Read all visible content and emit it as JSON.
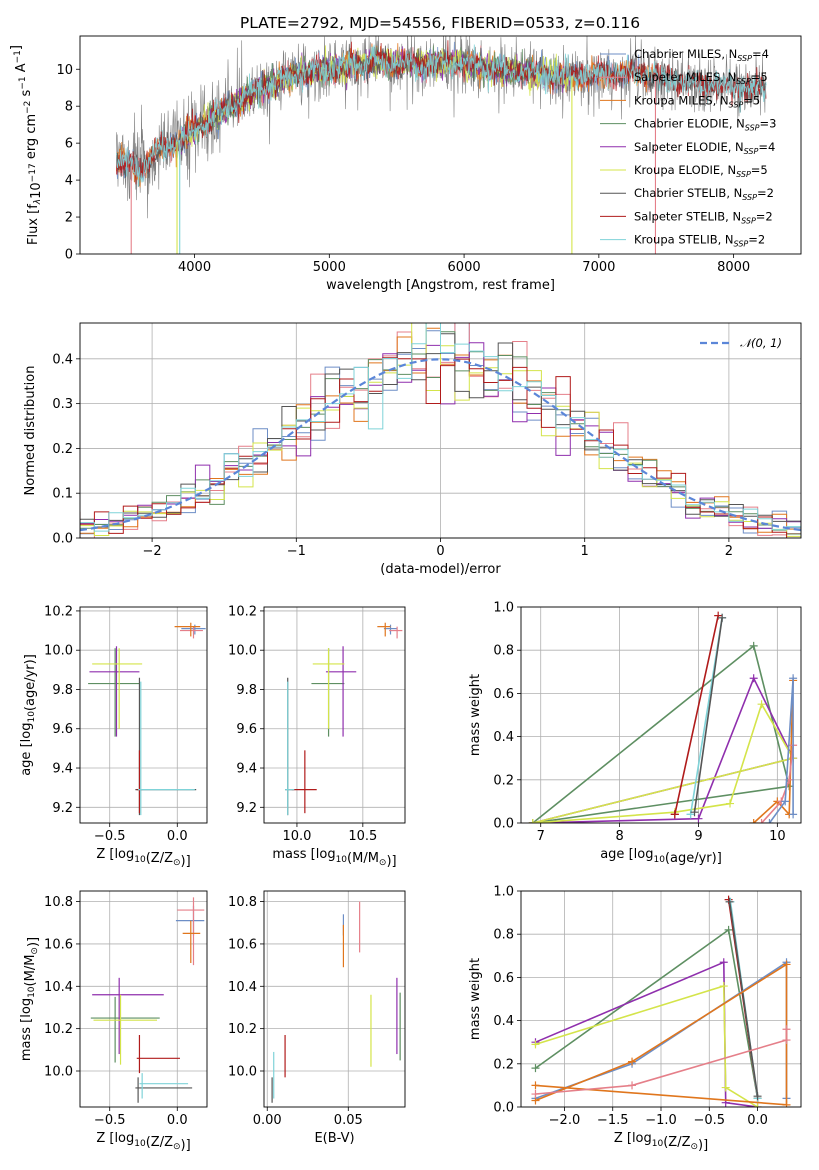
{
  "figure": {
    "title": "PLATE=2792, MJD=54556, FIBERID=0533, z=0.116"
  },
  "colors": {
    "chabrier_miles": "#6d8ec6",
    "salpeter_miles": "#e57f89",
    "kroupa_miles": "#e0761d",
    "chabrier_elodie": "#5e8f62",
    "salpeter_elodie": "#8f2fad",
    "kroupa_elodie": "#d4e44a",
    "chabrier_stelib": "#555555",
    "salpeter_stelib": "#b01b1b",
    "kroupa_stelib": "#7fd3d8",
    "data": "#7f7f7f",
    "gaussian": "#5b86d8"
  },
  "chart_data": [
    {
      "type": "line",
      "name": "spectrum",
      "xlabel": "wavelength [Angstrom, rest frame]",
      "ylabel": "Flux [f_λ10^-17 erg cm^-2 s^-1 A^-1]",
      "xlim": [
        3150,
        8500
      ],
      "ylim": [
        0,
        11.8
      ],
      "xticks": [
        4000,
        5000,
        6000,
        7000,
        8000
      ],
      "yticks": [
        0,
        2,
        4,
        6,
        8,
        10
      ],
      "data_range": [
        3420,
        8240
      ],
      "continuum_knots": {
        "x": [
          3420,
          3600,
          3700,
          3900,
          4000,
          4200,
          4300,
          4500,
          4700,
          4900,
          5100,
          5300,
          5500,
          5700,
          5900,
          6100,
          6300,
          6600,
          6800,
          7000,
          7300,
          7600,
          7900,
          8240
        ],
        "y": [
          5.0,
          4.6,
          5.4,
          6.2,
          6.7,
          7.7,
          8.1,
          9.0,
          9.6,
          9.9,
          10.1,
          10.4,
          10.3,
          10.2,
          10.4,
          10.2,
          9.9,
          9.7,
          9.6,
          9.7,
          9.8,
          9.3,
          9.1,
          9.0
        ]
      },
      "legend": [
        {
          "label": "Chabrier MILES, N",
          "sub": "SSP",
          "suffix": "=4",
          "color_key": "chabrier_miles"
        },
        {
          "label": "Salpeter MILES, N",
          "sub": "SSP",
          "suffix": "=5",
          "color_key": "salpeter_miles"
        },
        {
          "label": "Kroupa MILES, N",
          "sub": "SSP",
          "suffix": "=5",
          "color_key": "kroupa_miles"
        },
        {
          "label": "Chabrier ELODIE, N",
          "sub": "SSP",
          "suffix": "=3",
          "color_key": "chabrier_elodie"
        },
        {
          "label": "Salpeter ELODIE, N",
          "sub": "SSP",
          "suffix": "=4",
          "color_key": "salpeter_elodie"
        },
        {
          "label": "Kroupa ELODIE, N",
          "sub": "SSP",
          "suffix": "=5",
          "color_key": "kroupa_elodie"
        },
        {
          "label": "Chabrier STELIB, N",
          "sub": "SSP",
          "suffix": "=2",
          "color_key": "chabrier_stelib"
        },
        {
          "label": "Salpeter STELIB, N",
          "sub": "SSP",
          "suffix": "=2",
          "color_key": "salpeter_stelib"
        },
        {
          "label": "Kroupa STELIB, N",
          "sub": "SSP",
          "suffix": "=2",
          "color_key": "kroupa_stelib"
        }
      ],
      "legend_position": "top-right",
      "model_drops": [
        {
          "color_key": "salpeter_miles",
          "x": 3530
        },
        {
          "color_key": "kroupa_elodie",
          "x": 3870
        },
        {
          "color_key": "kroupa_stelib",
          "x": 3890
        },
        {
          "color_key": "kroupa_elodie",
          "x": 6800
        },
        {
          "color_key": "salpeter_miles",
          "x": 7420
        }
      ]
    },
    {
      "type": "bar",
      "name": "residual-histogram",
      "xlabel": "(data-model)/error",
      "ylabel": "Normed distribution",
      "xlim": [
        -2.5,
        2.5
      ],
      "ylim": [
        0,
        0.48
      ],
      "xticks": [
        -2,
        -1,
        0,
        1,
        2
      ],
      "yticks": [
        0.0,
        0.1,
        0.2,
        0.3,
        0.4
      ],
      "bin_width": 0.1,
      "gaussian_label": "𝒩(0, 1)",
      "legend_position": "top-right"
    },
    {
      "type": "scatter",
      "name": "age-vs-Z",
      "xlabel": "Z [log10(Z/Z⊙)]",
      "ylabel": "age [log10(age/yr)]",
      "xlim": [
        -0.72,
        0.22
      ],
      "ylim": [
        9.12,
        10.22
      ],
      "xticks": [
        -0.5,
        0.0
      ],
      "yticks": [
        9.2,
        9.4,
        9.6,
        9.8,
        10.0,
        10.2
      ],
      "points": [
        {
          "color_key": "chabrier_miles",
          "x": 0.13,
          "y": 10.11,
          "xerr": [
            0.1,
            0.08
          ],
          "yerr": [
            0.03,
            0.02
          ]
        },
        {
          "color_key": "salpeter_miles",
          "x": 0.12,
          "y": 10.1,
          "xerr": [
            0.1,
            0.07
          ],
          "yerr": [
            0.04,
            0.02
          ]
        },
        {
          "color_key": "kroupa_miles",
          "x": 0.1,
          "y": 10.12,
          "xerr": [
            0.12,
            0.07
          ],
          "yerr": [
            0.05,
            0.02
          ]
        },
        {
          "color_key": "chabrier_elodie",
          "x": -0.46,
          "y": 9.83,
          "xerr": [
            0.2,
            0.18
          ],
          "yerr": [
            0.27,
            0.18
          ]
        },
        {
          "color_key": "salpeter_elodie",
          "x": -0.45,
          "y": 9.89,
          "xerr": [
            0.2,
            0.17
          ],
          "yerr": [
            0.33,
            0.13
          ]
        },
        {
          "color_key": "kroupa_elodie",
          "x": -0.43,
          "y": 9.93,
          "xerr": [
            0.2,
            0.17
          ],
          "yerr": [
            0.33,
            0.08
          ]
        },
        {
          "color_key": "chabrier_stelib",
          "x": -0.28,
          "y": 9.29,
          "xerr": [
            0.03,
            0.42
          ],
          "yerr": [
            0.13,
            0.57
          ]
        },
        {
          "color_key": "salpeter_stelib",
          "x": -0.28,
          "y": 9.29,
          "xerr": [
            0.02,
            0.02
          ],
          "yerr": [
            0.12,
            0.2
          ]
        },
        {
          "color_key": "kroupa_stelib",
          "x": -0.27,
          "y": 9.29,
          "xerr": [
            0.02,
            0.4
          ],
          "yerr": [
            0.13,
            0.55
          ]
        }
      ]
    },
    {
      "type": "scatter",
      "name": "age-vs-mass",
      "xlabel": "mass [log10(M/M⊙)]",
      "ylabel": "",
      "xlim": [
        9.75,
        10.82
      ],
      "ylim": [
        9.12,
        10.22
      ],
      "xticks": [
        10.0,
        10.5
      ],
      "yticks": [
        9.2,
        9.4,
        9.6,
        9.8,
        10.0,
        10.2
      ],
      "points": [
        {
          "color_key": "chabrier_miles",
          "x": 10.71,
          "y": 10.11,
          "xerr": [
            0.05,
            0.05
          ],
          "yerr": [
            0.03,
            0.02
          ]
        },
        {
          "color_key": "salpeter_miles",
          "x": 10.76,
          "y": 10.1,
          "xerr": [
            0.06,
            0.04
          ],
          "yerr": [
            0.04,
            0.02
          ]
        },
        {
          "color_key": "kroupa_miles",
          "x": 10.67,
          "y": 10.12,
          "xerr": [
            0.06,
            0.04
          ],
          "yerr": [
            0.05,
            0.02
          ]
        },
        {
          "color_key": "chabrier_elodie",
          "x": 10.24,
          "y": 9.83,
          "xerr": [
            0.13,
            0.12
          ],
          "yerr": [
            0.27,
            0.18
          ]
        },
        {
          "color_key": "salpeter_elodie",
          "x": 10.35,
          "y": 9.89,
          "xerr": [
            0.13,
            0.1
          ],
          "yerr": [
            0.33,
            0.13
          ]
        },
        {
          "color_key": "kroupa_elodie",
          "x": 10.24,
          "y": 9.93,
          "xerr": [
            0.12,
            0.12
          ],
          "yerr": [
            0.33,
            0.08
          ]
        },
        {
          "color_key": "chabrier_stelib",
          "x": 9.93,
          "y": 9.29,
          "xerr": [
            0.02,
            0.05
          ],
          "yerr": [
            0.13,
            0.57
          ]
        },
        {
          "color_key": "salpeter_stelib",
          "x": 10.06,
          "y": 9.29,
          "xerr": [
            0.1,
            0.09
          ],
          "yerr": [
            0.12,
            0.2
          ]
        },
        {
          "color_key": "kroupa_stelib",
          "x": 9.93,
          "y": 9.29,
          "xerr": [
            0.02,
            0.05
          ],
          "yerr": [
            0.13,
            0.55
          ]
        }
      ]
    },
    {
      "type": "line",
      "name": "mass-weight-vs-age",
      "xlabel": "age [log10(age/yr)]",
      "ylabel": "mass weight",
      "xlim": [
        6.75,
        10.3
      ],
      "ylim": [
        0,
        1.0
      ],
      "xticks": [
        7,
        8,
        9,
        10
      ],
      "yticks": [
        0.0,
        0.2,
        0.4,
        0.6,
        0.8,
        1.0
      ],
      "series": [
        {
          "color_key": "chabrier_elodie",
          "x": [
            6.9,
            9.7,
            10.15,
            6.9
          ],
          "y": [
            0.0,
            0.82,
            0.17,
            0.0
          ]
        },
        {
          "color_key": "salpeter_elodie",
          "x": [
            6.9,
            9.0,
            9.7,
            10.2,
            6.9
          ],
          "y": [
            0.0,
            0.02,
            0.67,
            0.3,
            0.0
          ]
        },
        {
          "color_key": "kroupa_elodie",
          "x": [
            6.9,
            8.7,
            9.4,
            9.8,
            10.2,
            6.9
          ],
          "y": [
            0.0,
            0.05,
            0.09,
            0.55,
            0.3,
            0.0
          ]
        },
        {
          "color_key": "salpeter_stelib",
          "x": [
            8.7,
            9.25,
            8.7
          ],
          "y": [
            0.04,
            0.96,
            0.04
          ]
        },
        {
          "color_key": "kroupa_stelib",
          "x": [
            8.9,
            9.3,
            8.9
          ],
          "y": [
            0.04,
            0.95,
            0.04
          ]
        },
        {
          "color_key": "chabrier_stelib",
          "x": [
            8.95,
            9.3
          ],
          "y": [
            0.05,
            0.95
          ]
        },
        {
          "color_key": "kroupa_miles",
          "x": [
            9.7,
            10.0,
            10.15,
            10.2
          ],
          "y": [
            0.0,
            0.1,
            0.04,
            0.66
          ]
        },
        {
          "color_key": "salpeter_miles",
          "x": [
            9.8,
            10.05,
            10.15,
            10.2
          ],
          "y": [
            0.0,
            0.1,
            0.2,
            0.36
          ]
        },
        {
          "color_key": "chabrier_miles",
          "x": [
            9.9,
            10.1,
            10.2,
            10.2
          ],
          "y": [
            0.0,
            0.1,
            0.67,
            0.04
          ]
        }
      ]
    },
    {
      "type": "scatter",
      "name": "mass-vs-Z",
      "xlabel": "Z [log10(Z/Z⊙)]",
      "ylabel": "mass [log10(M/M⊙)]",
      "xlim": [
        -0.72,
        0.22
      ],
      "ylim": [
        9.83,
        10.85
      ],
      "xticks": [
        -0.5,
        0.0
      ],
      "yticks": [
        10.0,
        10.2,
        10.4,
        10.6,
        10.8
      ],
      "points": [
        {
          "color_key": "chabrier_miles",
          "x": 0.12,
          "y": 10.71,
          "xerr": [
            0.13,
            0.08
          ],
          "yerr": [
            0.07,
            0.07
          ]
        },
        {
          "color_key": "salpeter_miles",
          "x": 0.12,
          "y": 10.76,
          "xerr": [
            0.12,
            0.08
          ],
          "yerr": [
            0.26,
            0.06
          ]
        },
        {
          "color_key": "kroupa_miles",
          "x": 0.1,
          "y": 10.65,
          "xerr": [
            0.06,
            0.07
          ],
          "yerr": [
            0.14,
            0.06
          ]
        },
        {
          "color_key": "chabrier_elodie",
          "x": -0.46,
          "y": 10.25,
          "xerr": [
            0.18,
            0.33
          ],
          "yerr": [
            0.21,
            0.1
          ]
        },
        {
          "color_key": "salpeter_elodie",
          "x": -0.43,
          "y": 10.36,
          "xerr": [
            0.2,
            0.33
          ],
          "yerr": [
            0.28,
            0.08
          ]
        },
        {
          "color_key": "kroupa_elodie",
          "x": -0.42,
          "y": 10.24,
          "xerr": [
            0.2,
            0.27
          ],
          "yerr": [
            0.21,
            0.12
          ]
        },
        {
          "color_key": "chabrier_stelib",
          "x": -0.29,
          "y": 9.92,
          "xerr": [
            0.02,
            0.4
          ],
          "yerr": [
            0.07,
            0.05
          ]
        },
        {
          "color_key": "salpeter_stelib",
          "x": -0.28,
          "y": 10.06,
          "xerr": [
            0.02,
            0.3
          ],
          "yerr": [
            0.07,
            0.11
          ]
        },
        {
          "color_key": "kroupa_stelib",
          "x": -0.26,
          "y": 9.94,
          "xerr": [
            0.02,
            0.34
          ],
          "yerr": [
            0.07,
            0.05
          ]
        }
      ]
    },
    {
      "type": "scatter",
      "name": "mass-vs-EBV",
      "xlabel": "E(B-V)",
      "ylabel": "",
      "xlim": [
        -0.002,
        0.085
      ],
      "ylim": [
        9.83,
        10.85
      ],
      "xticks": [
        0.0,
        0.05
      ],
      "xtick_labels": [
        "0.00",
        "0.05"
      ],
      "yticks": [
        10.0,
        10.2,
        10.4,
        10.6,
        10.8
      ],
      "points": [
        {
          "color_key": "chabrier_miles",
          "x": 0.047,
          "y": 10.71,
          "yerr": [
            0.07,
            0.03
          ]
        },
        {
          "color_key": "salpeter_miles",
          "x": 0.057,
          "y": 10.75,
          "yerr": [
            0.19,
            0.05
          ]
        },
        {
          "color_key": "kroupa_miles",
          "x": 0.047,
          "y": 10.65,
          "yerr": [
            0.16,
            0.04
          ]
        },
        {
          "color_key": "chabrier_elodie",
          "x": 0.082,
          "y": 10.25,
          "yerr": [
            0.2,
            0.12
          ]
        },
        {
          "color_key": "salpeter_elodie",
          "x": 0.08,
          "y": 10.36,
          "yerr": [
            0.28,
            0.08
          ]
        },
        {
          "color_key": "kroupa_elodie",
          "x": 0.064,
          "y": 10.24,
          "yerr": [
            0.22,
            0.12
          ]
        },
        {
          "color_key": "chabrier_stelib",
          "x": 0.003,
          "y": 9.92,
          "yerr": [
            0.07,
            0.05
          ]
        },
        {
          "color_key": "salpeter_stelib",
          "x": 0.011,
          "y": 10.06,
          "yerr": [
            0.09,
            0.11
          ]
        },
        {
          "color_key": "kroupa_stelib",
          "x": 0.004,
          "y": 9.94,
          "yerr": [
            0.07,
            0.15
          ]
        }
      ]
    },
    {
      "type": "line",
      "name": "mass-weight-vs-Z",
      "xlabel": "Z [log10(Z/Z⊙)]",
      "ylabel": "mass weight",
      "xlim": [
        -2.45,
        0.45
      ],
      "ylim": [
        0,
        1.0
      ],
      "xticks": [
        -2.0,
        -1.5,
        -1.0,
        -0.5,
        0.0
      ],
      "yticks": [
        0.0,
        0.2,
        0.4,
        0.6,
        0.8,
        1.0
      ],
      "series": [
        {
          "color_key": "chabrier_elodie",
          "x": [
            -2.3,
            -0.3,
            0.0
          ],
          "y": [
            0.18,
            0.82,
            0.04
          ]
        },
        {
          "color_key": "salpeter_elodie",
          "x": [
            -2.3,
            -0.35,
            -0.33,
            0.0
          ],
          "y": [
            0.3,
            0.67,
            0.02,
            0.0
          ]
        },
        {
          "color_key": "kroupa_elodie",
          "x": [
            -2.3,
            -0.35,
            -0.33,
            0.0
          ],
          "y": [
            0.29,
            0.56,
            0.09,
            0.0
          ]
        },
        {
          "color_key": "salpeter_stelib",
          "x": [
            -0.3,
            0.0
          ],
          "y": [
            0.96,
            0.04
          ]
        },
        {
          "color_key": "kroupa_stelib",
          "x": [
            -0.28,
            0.0
          ],
          "y": [
            0.95,
            0.04
          ]
        },
        {
          "color_key": "chabrier_stelib",
          "x": [
            -0.29,
            0.0
          ],
          "y": [
            0.95,
            0.05
          ]
        },
        {
          "color_key": "chabrier_miles",
          "x": [
            -2.3,
            -1.3,
            0.3,
            0.3
          ],
          "y": [
            0.04,
            0.2,
            0.67,
            0.04
          ]
        },
        {
          "color_key": "kroupa_miles",
          "x": [
            -2.3,
            -1.3,
            0.3,
            0.3,
            -2.3
          ],
          "y": [
            0.03,
            0.21,
            0.66,
            0.01,
            0.1
          ]
        },
        {
          "color_key": "salpeter_miles",
          "x": [
            -2.3,
            -1.3,
            0.3,
            0.3
          ],
          "y": [
            0.06,
            0.1,
            0.31,
            0.36
          ]
        }
      ]
    }
  ]
}
